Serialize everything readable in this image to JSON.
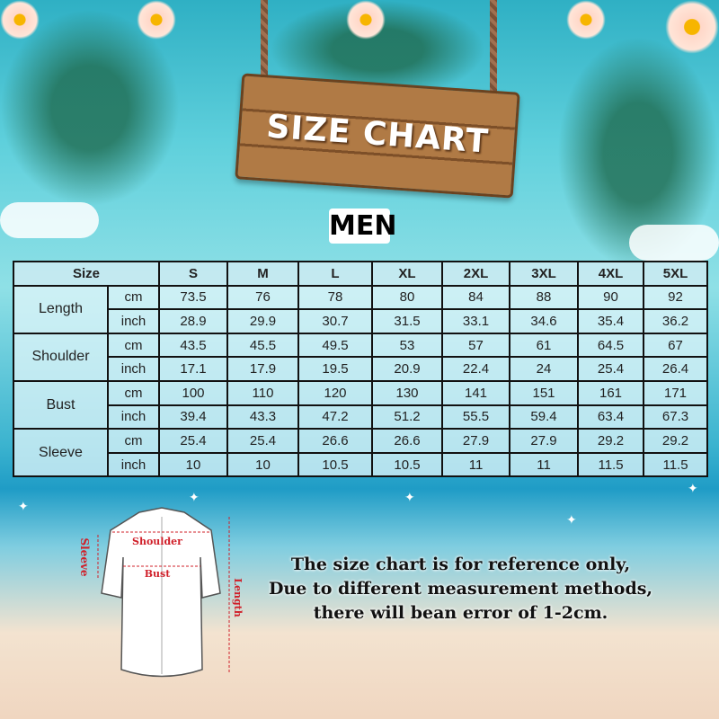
{
  "title": "SIZE CHART",
  "subtitle": "MEN",
  "table": {
    "size_label": "Size",
    "sizes": [
      "S",
      "M",
      "L",
      "XL",
      "2XL",
      "3XL",
      "4XL",
      "5XL"
    ],
    "rows": [
      {
        "measure": "Length",
        "cm": [
          "73.5",
          "76",
          "78",
          "80",
          "84",
          "88",
          "90",
          "92"
        ],
        "inch": [
          "28.9",
          "29.9",
          "30.7",
          "31.5",
          "33.1",
          "34.6",
          "35.4",
          "36.2"
        ]
      },
      {
        "measure": "Shoulder",
        "cm": [
          "43.5",
          "45.5",
          "49.5",
          "53",
          "57",
          "61",
          "64.5",
          "67"
        ],
        "inch": [
          "17.1",
          "17.9",
          "19.5",
          "20.9",
          "22.4",
          "24",
          "25.4",
          "26.4"
        ]
      },
      {
        "measure": "Bust",
        "cm": [
          "100",
          "110",
          "120",
          "130",
          "141",
          "151",
          "161",
          "171"
        ],
        "inch": [
          "39.4",
          "43.3",
          "47.2",
          "51.2",
          "55.5",
          "59.4",
          "63.4",
          "67.3"
        ]
      },
      {
        "measure": "Sleeve",
        "cm": [
          "25.4",
          "25.4",
          "26.6",
          "26.6",
          "27.9",
          "27.9",
          "29.2",
          "29.2"
        ],
        "inch": [
          "10",
          "10",
          "10.5",
          "10.5",
          "11",
          "11",
          "11.5",
          "11.5"
        ]
      }
    ],
    "units": {
      "cm": "cm",
      "inch": "inch"
    }
  },
  "diagram": {
    "shoulder": "Shoulder",
    "bust": "Bust",
    "sleeve": "Sleeve",
    "length": "Length",
    "accent": "#d0202a"
  },
  "notes": [
    "The size chart is for reference only,",
    "Due to different measurement methods,",
    "there will bean error of 1-2cm."
  ]
}
